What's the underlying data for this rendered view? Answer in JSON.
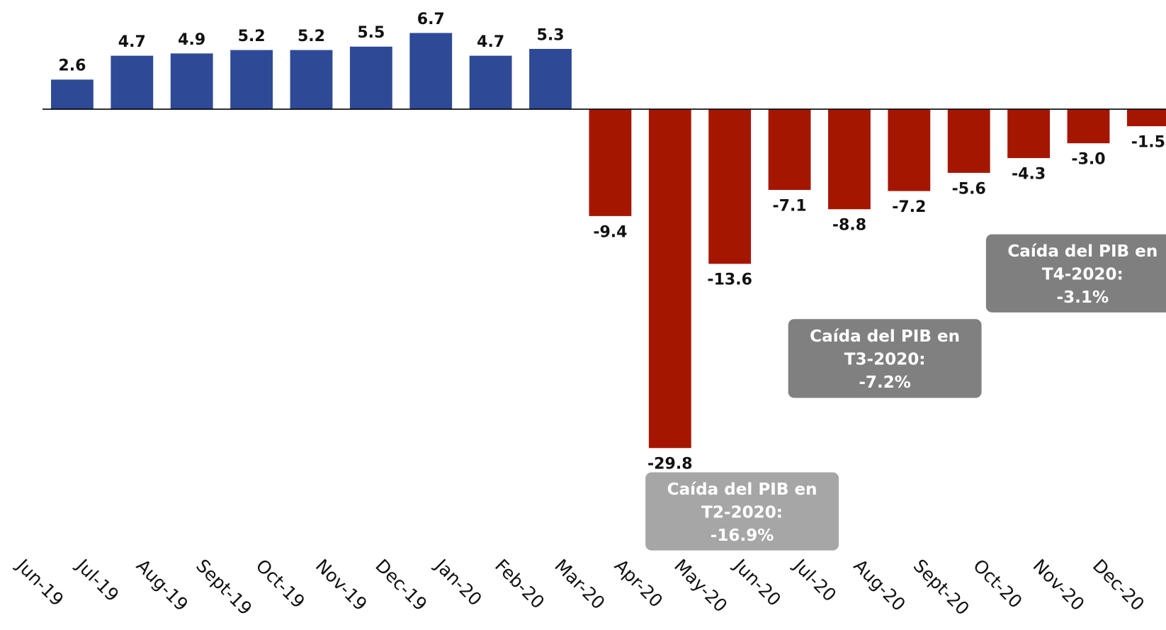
{
  "chart_data": {
    "type": "bar",
    "categories": [
      "Jun-19",
      "Jul-19",
      "Aug-19",
      "Sept-19",
      "Oct-19",
      "Nov-19",
      "Dec-19",
      "Jan-20",
      "Feb-20",
      "Mar-20",
      "Apr-20",
      "May-20",
      "Jun-20",
      "Jul-20",
      "Aug-20",
      "Sept-20",
      "Oct-20",
      "Nov-20",
      "Dec-20"
    ],
    "values": [
      2.6,
      4.7,
      4.9,
      5.2,
      5.2,
      5.5,
      6.7,
      4.7,
      5.3,
      -9.4,
      -29.8,
      -13.6,
      -7.1,
      -8.8,
      -7.2,
      -5.6,
      -4.3,
      -3.0,
      -1.5
    ],
    "value_labels": [
      "2.6",
      "4.7",
      "4.9",
      "5.2",
      "5.2",
      "5.5",
      "6.7",
      "4.7",
      "5.3",
      "-9.4",
      "-29.8",
      "-13.6",
      "-7.1",
      "-8.8",
      "-7.2",
      "-5.6",
      "-4.3",
      "-3.0",
      "-1.5"
    ],
    "positive_color": "#2e4a96",
    "negative_color": "#a51600",
    "ylim": [
      -45.8,
      9.6
    ],
    "annotations": [
      {
        "lines": [
          "Caída del PIB en",
          "T2-2020:",
          "-16.9%"
        ],
        "color": "#a6a6a6"
      },
      {
        "lines": [
          "Caída del PIB en",
          "T3-2020:",
          "-7.2%"
        ],
        "color": "#808080"
      },
      {
        "lines": [
          "Caída del PIB en",
          "T4-2020:",
          "-3.1%"
        ],
        "color": "#7f7f7f"
      }
    ]
  }
}
